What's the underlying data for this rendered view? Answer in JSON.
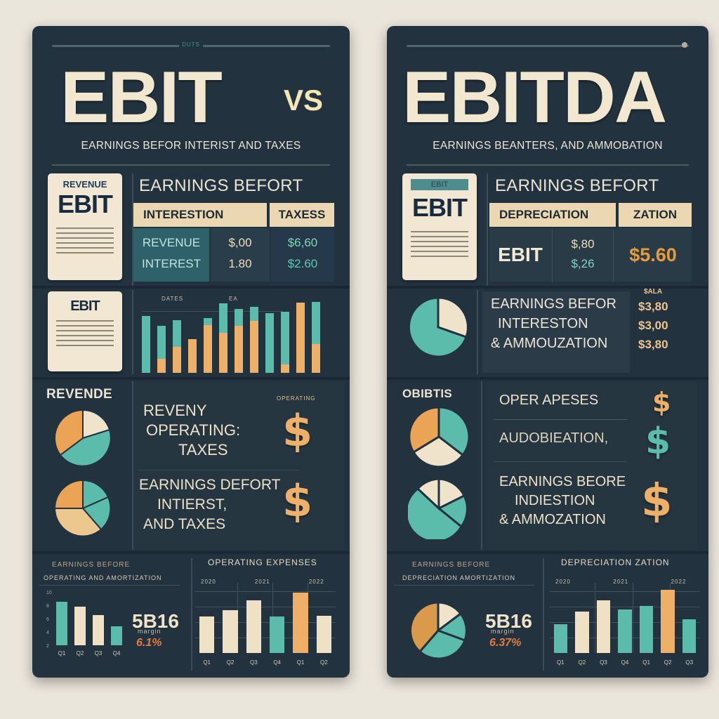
{
  "background_color": "#ebe6dc",
  "colors": {
    "panel": "#22323f",
    "cream": "#f2e8cf",
    "teal": "#5bbcac",
    "orange": "#eeb068",
    "band": "#ebd8b2"
  },
  "left": {
    "top_tag": "DUTS",
    "title": "EBIT",
    "vs": "VS",
    "subtitle": "EARNINGS BEFOR INTERIST AND TAXES",
    "doc_card_1": {
      "small": "REVENUE",
      "big": "EBIT"
    },
    "doc_card_2": {
      "big": "EBIT"
    },
    "table": {
      "heading": "EARNINGS BEFORT",
      "headers": [
        "INTERESTION",
        "TAXESS"
      ],
      "rows": [
        {
          "label": "REVENUE",
          "v1": "$,00",
          "v2": "$6,60"
        },
        {
          "label": "INTEREST",
          "v1": "1.80",
          "v2": "$2.60"
        }
      ]
    },
    "bar_chart_1": {
      "label_a": "DATES",
      "label_b": "EA"
    },
    "pie_heading": "REVENDE",
    "text_block_1": [
      "REVENY",
      "OPERATING:",
      "TAXES"
    ],
    "text_block_2": [
      "EARNINGS DEFORT",
      "INTIERST,",
      "AND TAXES"
    ],
    "corner_tag": "OPERATING",
    "bottom_left": {
      "title_1": "EARNINGS BEFORE",
      "title_2": "OPERATING AND AMORTIZATION",
      "stat_caption": "margin",
      "stat_big": "5B16",
      "stat_pct": "6.1%",
      "y_ticks": [
        "10",
        "8",
        "6",
        "4",
        "2"
      ],
      "x_ticks": [
        "Q1",
        "Q2",
        "Q3",
        "Q4"
      ]
    },
    "bottom_right": {
      "title": "OPERATING EXPENSES",
      "col_labels": [
        "2020",
        "2021",
        "2022"
      ],
      "x_ticks": [
        "Q1",
        "Q2",
        "Q3",
        "Q4",
        "Q1",
        "Q2"
      ]
    }
  },
  "right": {
    "title": "EBITDA",
    "subtitle": "EARNINGS BEANTERS, AND AMMOBATION",
    "doc_card": {
      "small": "EBIT",
      "big": "EBIT"
    },
    "table": {
      "heading": "EARNINGS BEFORT",
      "headers": [
        "DEPRECIATION",
        "ZATION"
      ],
      "row_label": "EBIT",
      "v1a": "$,80",
      "v1b": "$,26",
      "v2": "$5.60"
    },
    "text_block_1": [
      "EARNINGS BEFOR",
      "INTERESTON",
      "& AMMOUZATION"
    ],
    "value_list": {
      "caption": "$ALA",
      "values": [
        "$3,80",
        "$3,00",
        "$3,80"
      ]
    },
    "pie_heading": "OBIBTIS",
    "text_block_2": [
      "OPER APESES"
    ],
    "text_block_3": [
      "AUDOBIEATION,"
    ],
    "text_block_4": [
      "EARNINGS BEORE",
      "INDIESTION",
      "& AMMOZATION"
    ],
    "bottom_left": {
      "title_1": "EARNINGS BEFORE",
      "title_2": "DEPRECIATION AMORTIZATION",
      "stat_caption": "margin",
      "stat_big": "5B16",
      "stat_pct": "6.37%"
    },
    "bottom_right": {
      "title": "DEPRECIATION ZATION",
      "col_labels": [
        "2020",
        "2021",
        "2022"
      ],
      "x_ticks": [
        "Q1",
        "Q2",
        "Q3",
        "Q4",
        "Q1",
        "Q2",
        "Q3"
      ]
    }
  },
  "chart_data": [
    {
      "type": "bar",
      "title": "EBIT stacked bars (left panel)",
      "categories": [
        "1",
        "2",
        "3",
        "4",
        "5",
        "6",
        "7",
        "8",
        "9",
        "10",
        "11",
        "12"
      ],
      "series": [
        {
          "name": "orange",
          "values": [
            0,
            20,
            37,
            48,
            68,
            57,
            67,
            74,
            0,
            12,
            100,
            41
          ]
        },
        {
          "name": "teal",
          "values": [
            81,
            47,
            38,
            0,
            10,
            42,
            24,
            20,
            85,
            75,
            0,
            60
          ]
        }
      ]
    },
    {
      "type": "bar",
      "title": "Earnings before operating and amortization",
      "categories": [
        "Q1",
        "Q2",
        "Q3",
        "Q4"
      ],
      "values": [
        8,
        7,
        5.5,
        3.5
      ],
      "ylim": [
        0,
        10
      ]
    },
    {
      "type": "bar",
      "title": "Operating expenses",
      "categories": [
        "Q1",
        "Q2",
        "Q3",
        "Q4",
        "Q1",
        "Q2"
      ],
      "values": [
        58,
        68,
        83,
        58,
        96,
        59
      ]
    },
    {
      "type": "bar",
      "title": "Depreciation zation",
      "categories": [
        "Q1",
        "Q2",
        "Q3",
        "Q4",
        "Q1",
        "Q2",
        "Q3"
      ],
      "values": [
        46,
        66,
        83,
        69,
        74,
        100,
        53
      ]
    },
    {
      "type": "pie",
      "title": "Pie charts (decorative)",
      "values": [
        [
          30,
          25,
          45
        ],
        [
          35,
          20,
          45
        ],
        [
          30,
          70
        ],
        [
          35,
          25,
          40
        ],
        [
          25,
          20,
          20,
          35
        ],
        [
          35,
          20,
          15,
          30
        ]
      ]
    }
  ]
}
